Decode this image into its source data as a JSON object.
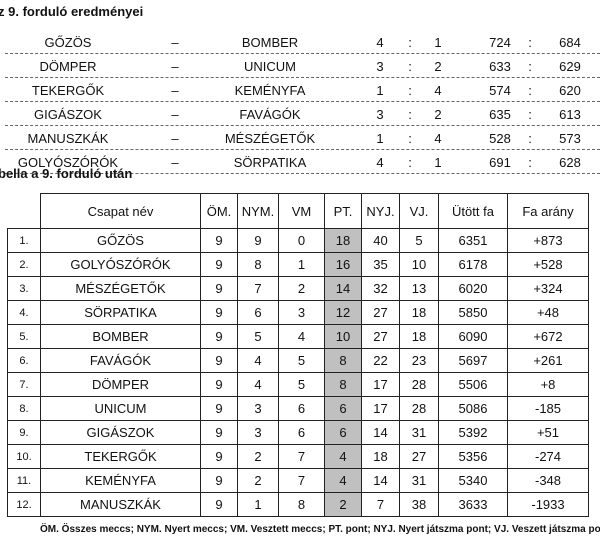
{
  "round_title": "z 9. forduló eredményei",
  "results": [
    {
      "home": "GŐZÖS",
      "sep": "–",
      "away": "BOMBER",
      "s1": "4",
      "s2": "1",
      "p1": "724",
      "p2": "684"
    },
    {
      "home": "DÖMPER",
      "sep": "–",
      "away": "UNICUM",
      "s1": "3",
      "s2": "2",
      "p1": "633",
      "p2": "629"
    },
    {
      "home": "TEKERGŐK",
      "sep": "–",
      "away": "KEMÉNYFA",
      "s1": "1",
      "s2": "4",
      "p1": "574",
      "p2": "620"
    },
    {
      "home": "GIGÁSZOK",
      "sep": "–",
      "away": "FAVÁGÓK",
      "s1": "3",
      "s2": "2",
      "p1": "635",
      "p2": "613"
    },
    {
      "home": "MANUSZKÁK",
      "sep": "–",
      "away": "MÉSZÉGETŐK",
      "s1": "1",
      "s2": "4",
      "p1": "528",
      "p2": "573"
    },
    {
      "home": "GOLYÓSZÓRÓK",
      "sep": "–",
      "away": "SÖRPATIKA",
      "s1": "4",
      "s2": "1",
      "p1": "691",
      "p2": "628"
    }
  ],
  "colon": ":",
  "table_title": "bella a 9. forduló után",
  "headers": [
    "Csapat név",
    "ÖM.",
    "NYM.",
    "VM",
    "PT.",
    "NYJ.",
    "VJ.",
    "Ütött fa",
    "Fa arány"
  ],
  "standings": [
    [
      "1.",
      "GŐZÖS",
      "9",
      "9",
      "0",
      "18",
      "40",
      "5",
      "6351",
      "+873"
    ],
    [
      "2.",
      "GOLYÓSZÓRÓK",
      "9",
      "8",
      "1",
      "16",
      "35",
      "10",
      "6178",
      "+528"
    ],
    [
      "3.",
      "MÉSZÉGETŐK",
      "9",
      "7",
      "2",
      "14",
      "32",
      "13",
      "6020",
      "+324"
    ],
    [
      "4.",
      "SÖRPATIKA",
      "9",
      "6",
      "3",
      "12",
      "27",
      "18",
      "5850",
      "+48"
    ],
    [
      "5.",
      "BOMBER",
      "9",
      "5",
      "4",
      "10",
      "27",
      "18",
      "6090",
      "+672"
    ],
    [
      "6.",
      "FAVÁGÓK",
      "9",
      "4",
      "5",
      "8",
      "22",
      "23",
      "5697",
      "+261"
    ],
    [
      "7.",
      "DÖMPER",
      "9",
      "4",
      "5",
      "8",
      "17",
      "28",
      "5506",
      "+8"
    ],
    [
      "8.",
      "UNICUM",
      "9",
      "3",
      "6",
      "6",
      "17",
      "28",
      "5086",
      "-185"
    ],
    [
      "9.",
      "GIGÁSZOK",
      "9",
      "3",
      "6",
      "6",
      "14",
      "31",
      "5392",
      "+51"
    ],
    [
      "10.",
      "TEKERGŐK",
      "9",
      "2",
      "7",
      "4",
      "18",
      "27",
      "5356",
      "-274"
    ],
    [
      "11.",
      "KEMÉNYFA",
      "9",
      "2",
      "7",
      "4",
      "14",
      "31",
      "5340",
      "-348"
    ],
    [
      "12.",
      "MANUSZKÁK",
      "9",
      "1",
      "8",
      "2",
      "7",
      "38",
      "3633",
      "-1933"
    ]
  ],
  "footnote": "ÖM. Összes meccs; NYM. Nyert meccs; VM. Vesztett meccs; PT. pont; NYJ. Nyert játszma pont; VJ. Veszett játszma pont",
  "colors": {
    "points_column_bg": "#c0c0c0"
  }
}
